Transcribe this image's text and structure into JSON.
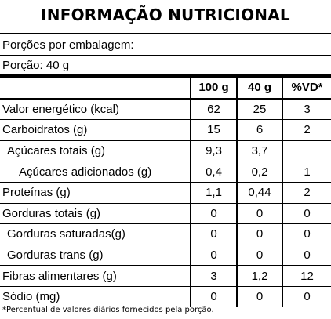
{
  "title": "INFORMAÇÃO NUTRICIONAL",
  "servings_per_package": "Porções por embalagem:",
  "serving_size": "Porção: 40 g",
  "columns": [
    "100 g",
    "40 g",
    "%VD*"
  ],
  "rows": [
    {
      "label": "Valor energético (kcal)",
      "indent": 0,
      "v100": "62",
      "v40": "25",
      "vd": "3"
    },
    {
      "label": "Carboidratos (g)",
      "indent": 0,
      "v100": "15",
      "v40": "6",
      "vd": "2"
    },
    {
      "label": "Açúcares totais (g)",
      "indent": 1,
      "v100": "9,3",
      "v40": "3,7",
      "vd": ""
    },
    {
      "label": "Açúcares adicionados (g)",
      "indent": 2,
      "v100": "0,4",
      "v40": "0,2",
      "vd": "1"
    },
    {
      "label": "Proteínas (g)",
      "indent": 0,
      "v100": "1,1",
      "v40": "0,44",
      "vd": "2"
    },
    {
      "label": "Gorduras totais (g)",
      "indent": 0,
      "v100": "0",
      "v40": "0",
      "vd": "0"
    },
    {
      "label": "Gorduras saturadas(g)",
      "indent": 1,
      "v100": "0",
      "v40": "0",
      "vd": "0"
    },
    {
      "label": "Gorduras trans (g)",
      "indent": 1,
      "v100": "0",
      "v40": "0",
      "vd": "0"
    },
    {
      "label": "Fibras alimentares (g)",
      "indent": 0,
      "v100": "3",
      "v40": "1,2",
      "vd": "12"
    },
    {
      "label": "Sódio (mg)",
      "indent": 0,
      "v100": "0",
      "v40": "0",
      "vd": "0"
    }
  ],
  "footnote": "*Percentual de valores diários fornecidos pela porção."
}
